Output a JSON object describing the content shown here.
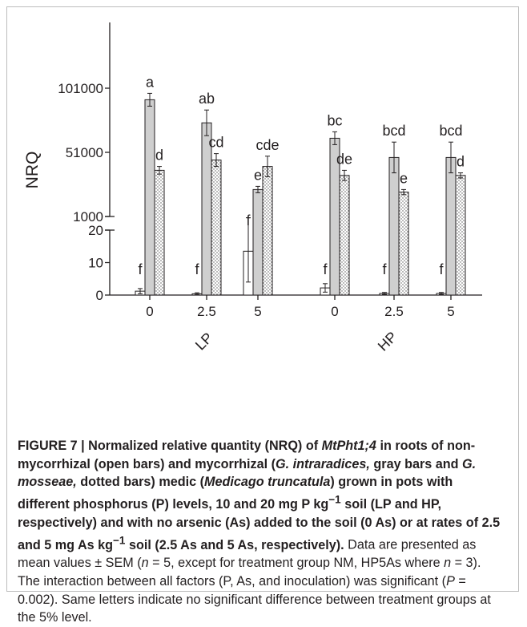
{
  "chart_data": {
    "type": "bar",
    "ylabel": "NRQ",
    "y_axis_break": true,
    "ylim_lower": [
      0,
      20
    ],
    "ylim_upper": [
      1000,
      101000
    ],
    "yticks_lower": [
      "0",
      "10",
      "20"
    ],
    "yticks_upper": [
      "1000",
      "51000",
      "101000"
    ],
    "groups": [
      "LP",
      "HP"
    ],
    "categories": [
      "0",
      "2.5",
      "5"
    ],
    "bars": [
      {
        "group": "LP",
        "as": "0",
        "treatment": "NM",
        "value": 1.2,
        "err": 0.8,
        "letter": "f"
      },
      {
        "group": "LP",
        "as": "0",
        "treatment": "Gi",
        "value": 92000,
        "err": 5000,
        "letter": "a"
      },
      {
        "group": "LP",
        "as": "0",
        "treatment": "Gm",
        "value": 37000,
        "err": 3000,
        "letter": "d"
      },
      {
        "group": "LP",
        "as": "2.5",
        "treatment": "NM",
        "value": 0.4,
        "err": 0.3,
        "letter": "f"
      },
      {
        "group": "LP",
        "as": "2.5",
        "treatment": "Gi",
        "value": 74000,
        "err": 10000,
        "letter": "ab"
      },
      {
        "group": "LP",
        "as": "2.5",
        "treatment": "Gm",
        "value": 45000,
        "err": 5000,
        "letter": "cd"
      },
      {
        "group": "LP",
        "as": "5",
        "treatment": "NM",
        "value": 13.5,
        "err": 9.5,
        "letter": "f"
      },
      {
        "group": "LP",
        "as": "5",
        "treatment": "Gi",
        "value": 22000,
        "err": 2500,
        "letter": "e"
      },
      {
        "group": "LP",
        "as": "5",
        "treatment": "Gm",
        "value": 40000,
        "err": 8000,
        "letter": "cde"
      },
      {
        "group": "HP",
        "as": "0",
        "treatment": "NM",
        "value": 2.2,
        "err": 1.3,
        "letter": "f"
      },
      {
        "group": "HP",
        "as": "0",
        "treatment": "Gi",
        "value": 62000,
        "err": 5000,
        "letter": "bc"
      },
      {
        "group": "HP",
        "as": "0",
        "treatment": "Gm",
        "value": 33000,
        "err": 4000,
        "letter": "de"
      },
      {
        "group": "HP",
        "as": "2.5",
        "treatment": "NM",
        "value": 0.5,
        "err": 0.3,
        "letter": "f"
      },
      {
        "group": "HP",
        "as": "2.5",
        "treatment": "Gi",
        "value": 47000,
        "err": 12000,
        "letter": "bcd"
      },
      {
        "group": "HP",
        "as": "2.5",
        "treatment": "Gm",
        "value": 20000,
        "err": 2000,
        "letter": "e"
      },
      {
        "group": "HP",
        "as": "5",
        "treatment": "NM",
        "value": 0.5,
        "err": 0.3,
        "letter": "f"
      },
      {
        "group": "HP",
        "as": "5",
        "treatment": "Gi",
        "value": 47000,
        "err": 12000,
        "letter": "bcd"
      },
      {
        "group": "HP",
        "as": "5",
        "treatment": "Gm",
        "value": 33000,
        "err": 2000,
        "letter": "d"
      }
    ],
    "colors": {
      "NM": "#ffffff",
      "Gi": "#cfcfcf",
      "Gm": "dotted",
      "stroke": "#231f20"
    }
  },
  "caption": {
    "bold_1": "FIGURE 7 | Normalized relative quantity (NRQ) of ",
    "bold_italic_1": "MtPht1;4",
    "bold_2": " in roots of non-mycorrhizal (open bars) and mycorrhizal (",
    "bold_italic_2": "G. intraradices,",
    "bold_3": " gray bars and ",
    "bold_italic_3": "G. mosseae,",
    "bold_4": " dotted bars) medic (",
    "bold_italic_4": "Medicago truncatula",
    "bold_5": ") grown in pots with different phosphorus (P) levels, 10 and 20 mg P kg",
    "bold_sup": "−1",
    "bold_6": " soil (LP and HP, respectively) and with no arsenic (As) added to the soil (0 As) or at rates of 2.5 and 5 mg As kg",
    "bold_sup2": "−1",
    "bold_7": " soil (2.5 As and 5 As, respectively).",
    "text_1": " Data are presented as mean values ± SEM (",
    "italic_n1": "n",
    "text_2": " = 5, except for treatment group NM, HP5As where ",
    "italic_n2": "n",
    "text_3": " = 3). The interaction between all factors (P, As, and inoculation) was significant (",
    "italic_p": "P",
    "text_4": " = 0.002). Same letters indicate no significant difference between treatment groups at the 5% level."
  }
}
